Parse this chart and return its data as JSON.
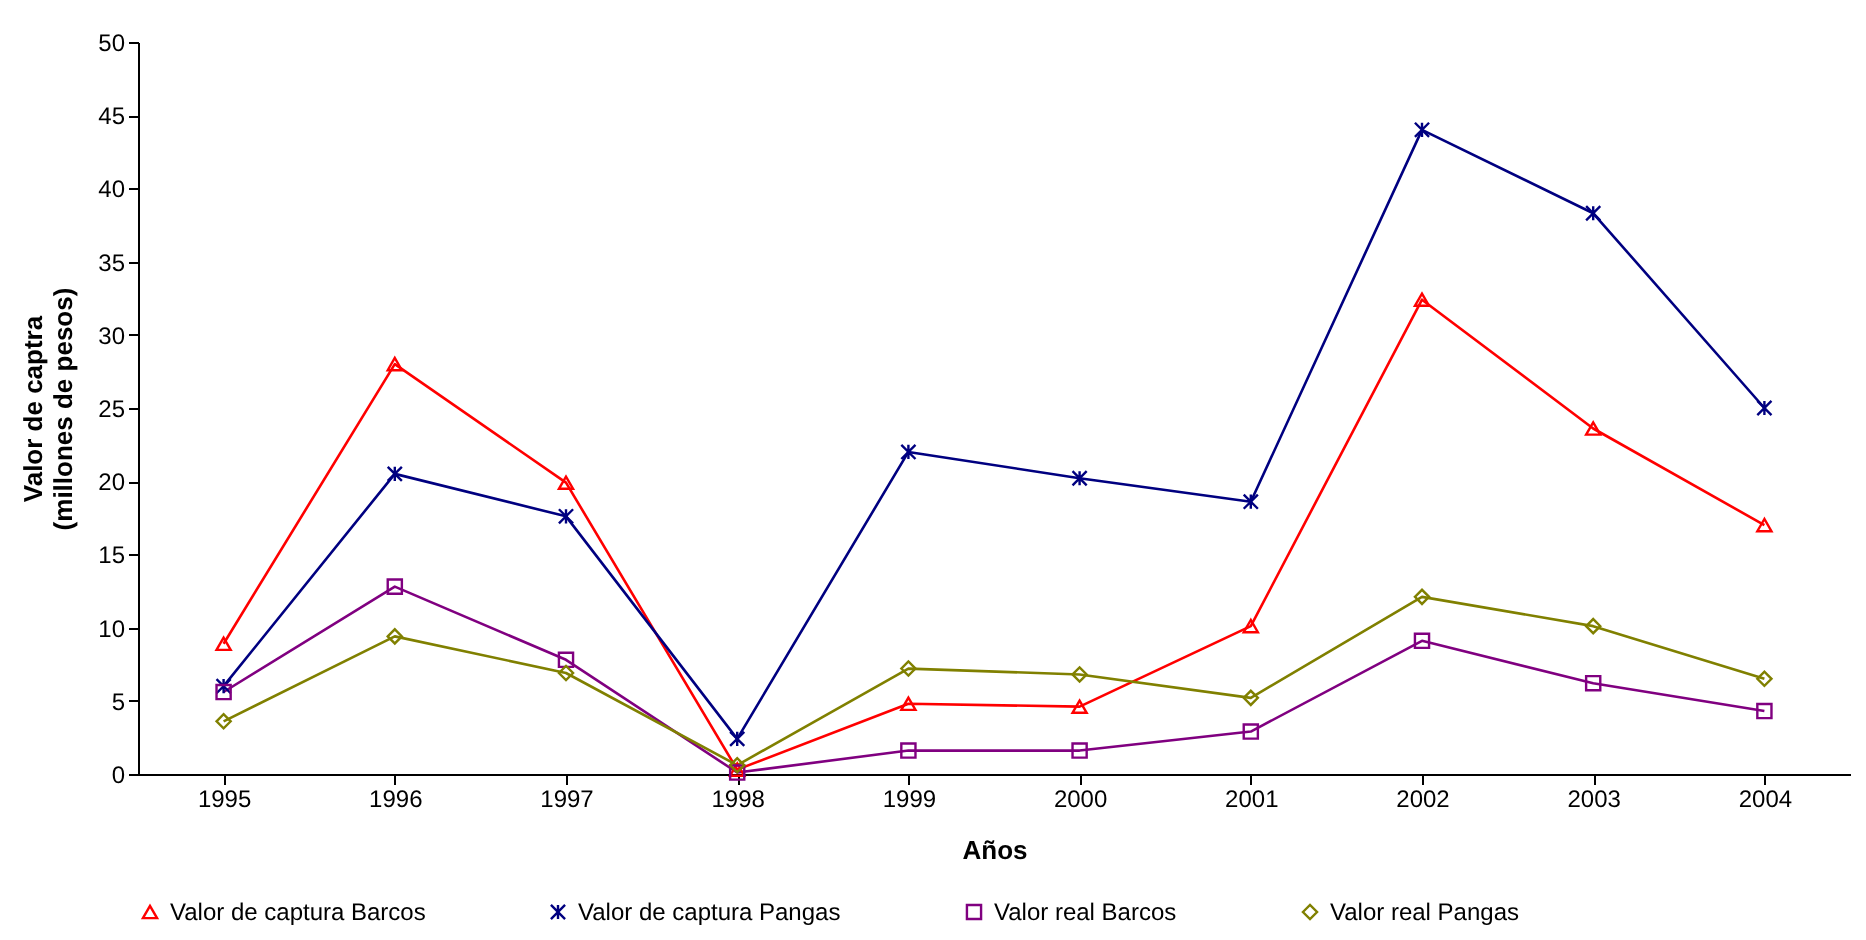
{
  "chart_data": {
    "type": "line",
    "xlabel": "Años",
    "ylabel": "Valor de captra\n(millones de pesos)",
    "categories": [
      "1995",
      "1996",
      "1997",
      "1998",
      "1999",
      "2000",
      "2001",
      "2002",
      "2003",
      "2004"
    ],
    "series": [
      {
        "name": "Valor de captura Barcos",
        "color": "#ff0000",
        "marker": "triangle",
        "values": [
          8.9,
          28,
          19.9,
          0.3,
          4.8,
          4.6,
          10.1,
          32.4,
          23.6,
          17
        ]
      },
      {
        "name": "Valor de captura Pangas",
        "color": "#000080",
        "marker": "cross",
        "values": [
          6,
          20.5,
          17.6,
          2.4,
          22,
          20.2,
          18.6,
          44,
          38.3,
          25
        ]
      },
      {
        "name": "Valor real Barcos",
        "color": "#800080",
        "marker": "square",
        "values": [
          5.6,
          12.8,
          7.8,
          0.1,
          1.6,
          1.6,
          2.9,
          9.1,
          6.2,
          4.3
        ]
      },
      {
        "name": "Valor real Pangas",
        "color": "#808000",
        "marker": "diamond",
        "values": [
          3.6,
          9.4,
          6.9,
          0.6,
          7.2,
          6.8,
          5.2,
          12.1,
          10.1,
          6.5
        ]
      }
    ],
    "ylim": [
      0,
      50
    ],
    "yticks": [
      0,
      5,
      10,
      15,
      20,
      25,
      30,
      35,
      40,
      45,
      50
    ],
    "grid": false,
    "legend": "bottom",
    "line_style": "solid"
  }
}
